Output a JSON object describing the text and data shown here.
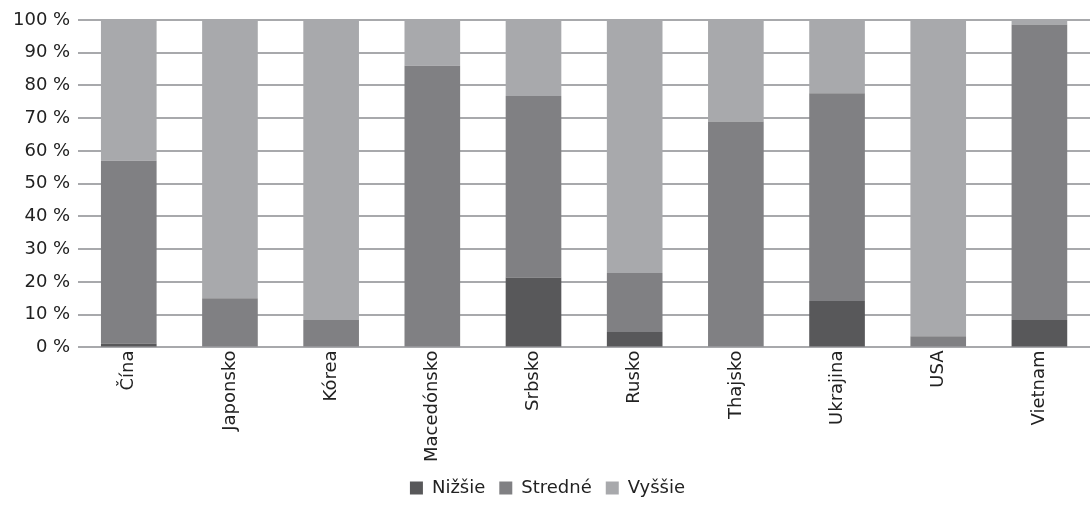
{
  "chart_data": {
    "type": "bar",
    "stacked": true,
    "categories": [
      "Čína",
      "Japonsko",
      "Kórea",
      "Macedónsko",
      "Srbsko",
      "Rusko",
      "Thajsko",
      "Ukrajina",
      "USA",
      "Vietnam"
    ],
    "series": [
      {
        "name": "Nižšie",
        "color": "#58585a",
        "values": [
          1.2,
          0,
          0,
          0,
          21.4,
          4.7,
          0,
          14.2,
          0,
          8.4
        ]
      },
      {
        "name": "Stredné",
        "color": "#808083",
        "values": [
          55.8,
          15,
          8.4,
          86,
          55.4,
          18,
          69,
          63.4,
          3.4,
          90.2
        ]
      },
      {
        "name": "Vyššie",
        "color": "#a8a9ac",
        "values": [
          43,
          85,
          91.6,
          14,
          23.2,
          77.3,
          31,
          22.4,
          96.6,
          1.4
        ]
      }
    ],
    "ylim": [
      0,
      100
    ],
    "yticks": [
      {
        "value": 0,
        "label": "0 %"
      },
      {
        "value": 10,
        "label": "10 %"
      },
      {
        "value": 20,
        "label": "20 %"
      },
      {
        "value": 30,
        "label": "30 %"
      },
      {
        "value": 40,
        "label": "40 %"
      },
      {
        "value": 50,
        "label": "50 %"
      },
      {
        "value": 60,
        "label": "60 %"
      },
      {
        "value": 70,
        "label": "70 %"
      },
      {
        "value": 80,
        "label": "80 %"
      },
      {
        "value": 90,
        "label": "90 %"
      },
      {
        "value": 100,
        "label": "100 %"
      }
    ],
    "grid": "y",
    "legend": "bottom"
  }
}
